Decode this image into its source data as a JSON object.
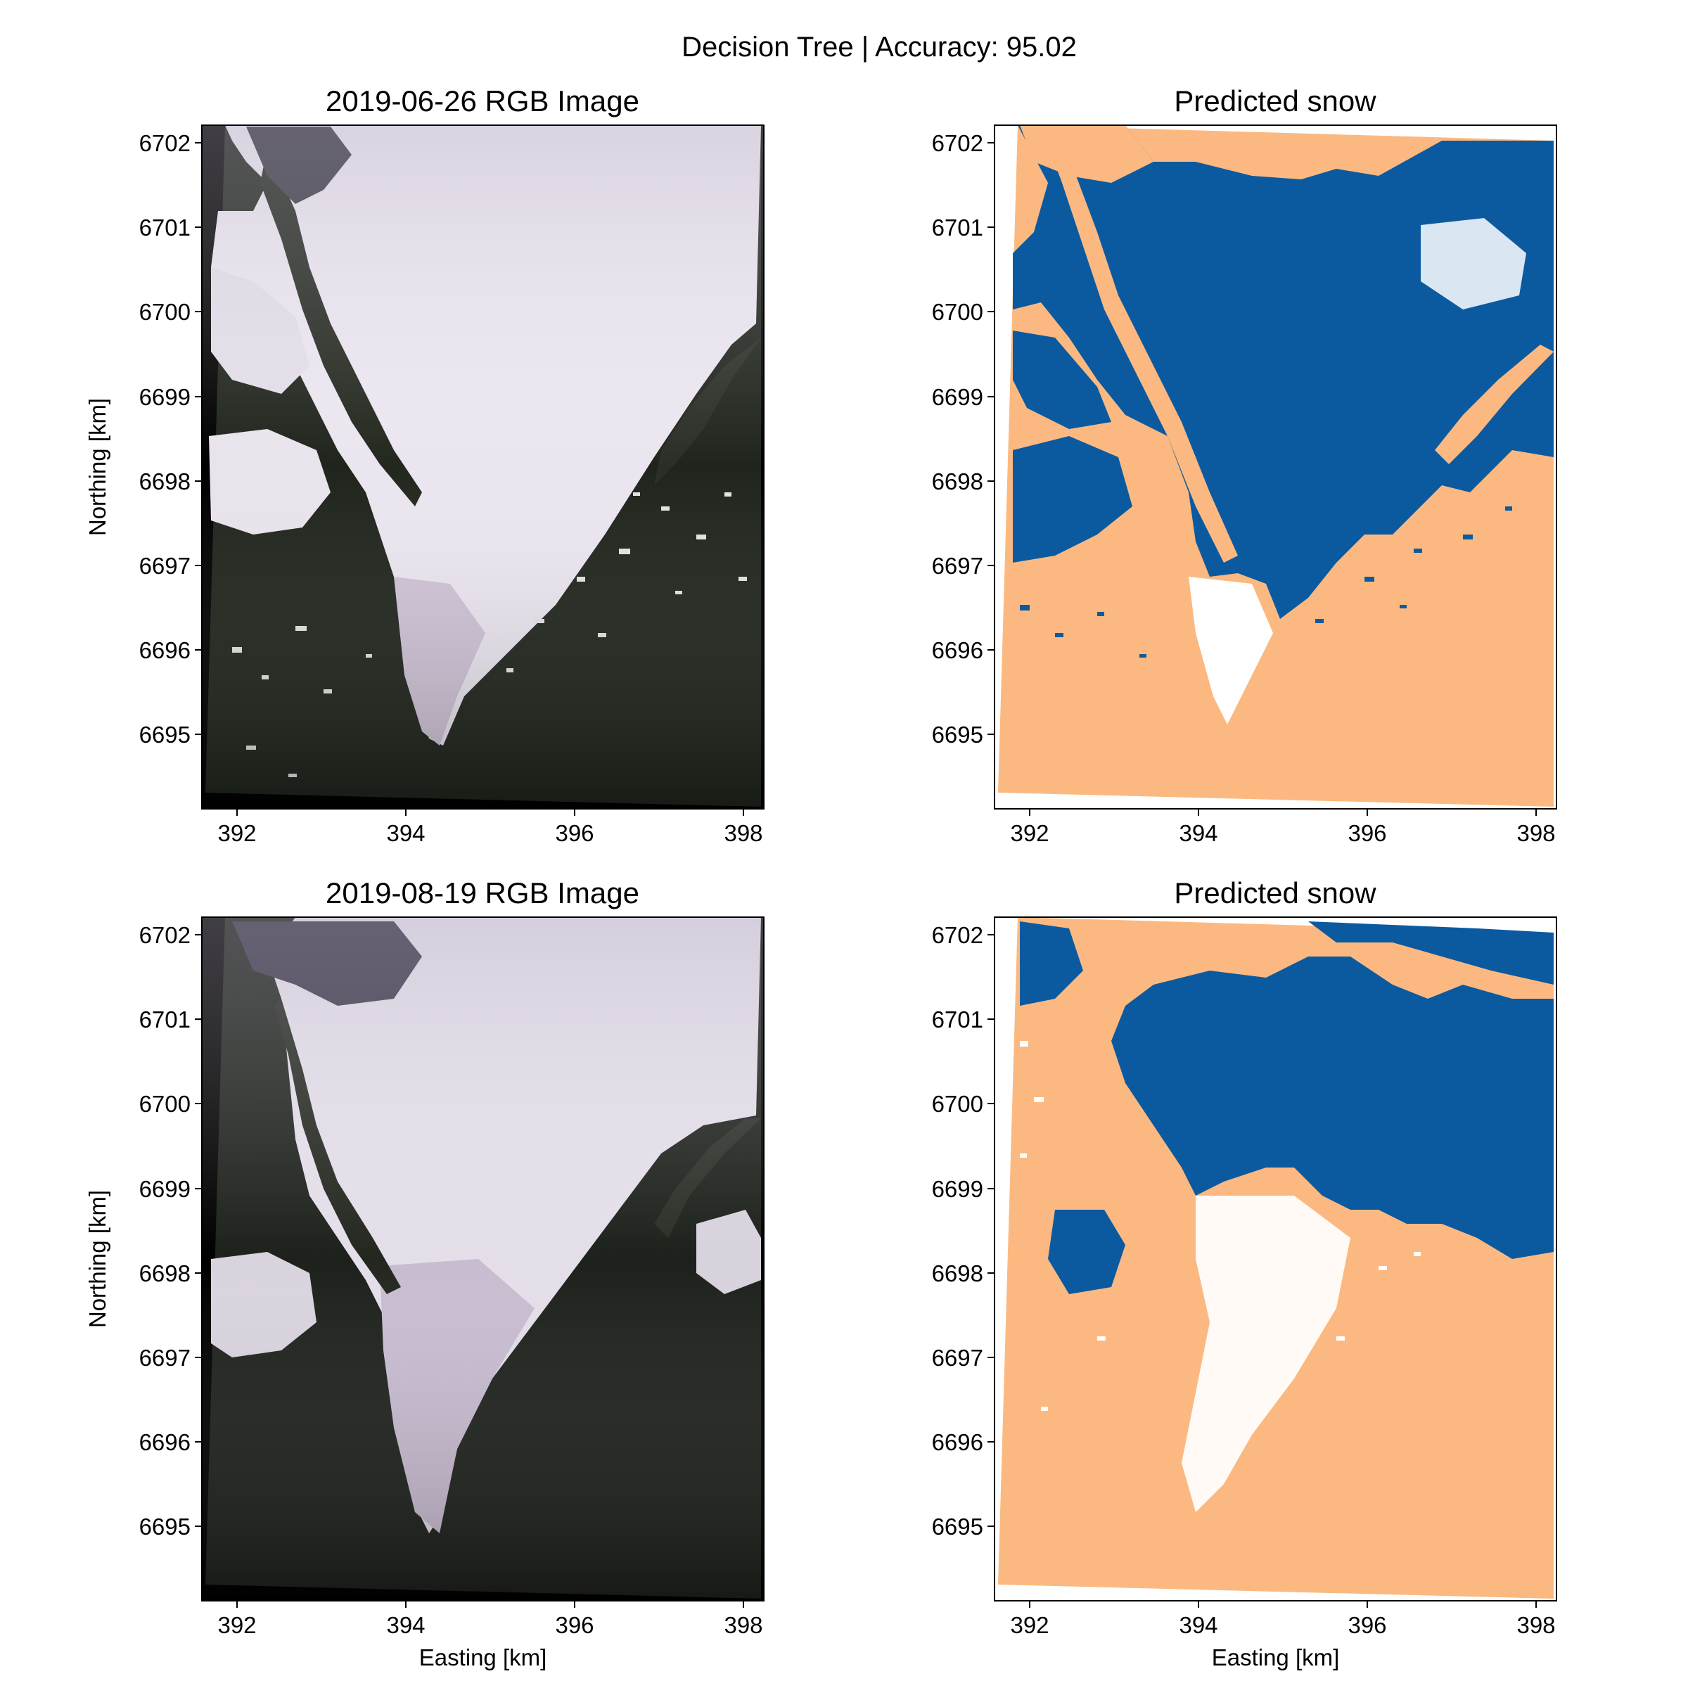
{
  "figure": {
    "suptitle": "Decision Tree | Accuracy: 95.02"
  },
  "axes": {
    "xlabel": "Easting [km]",
    "ylabel": "Northing [km]",
    "xticks": [
      "392",
      "394",
      "396",
      "398"
    ],
    "yticks": [
      "6702",
      "6701",
      "6700",
      "6699",
      "6698",
      "6697",
      "6696",
      "6695"
    ]
  },
  "panels": [
    {
      "title": "2019-06-26 RGB Image",
      "kind": "rgb",
      "date": "2019-06-26"
    },
    {
      "title": "Predicted snow",
      "kind": "snow"
    },
    {
      "title": "2019-08-19 RGB Image",
      "kind": "rgb",
      "date": "2019-08-19"
    },
    {
      "title": "Predicted snow",
      "kind": "snow"
    }
  ],
  "colors": {
    "snow": "#0b5aa0",
    "no_snow": "#fbb981",
    "rgb_snow": "#ece6f0",
    "rgb_rock": "#1e231c",
    "frame_black": "#000000"
  }
}
